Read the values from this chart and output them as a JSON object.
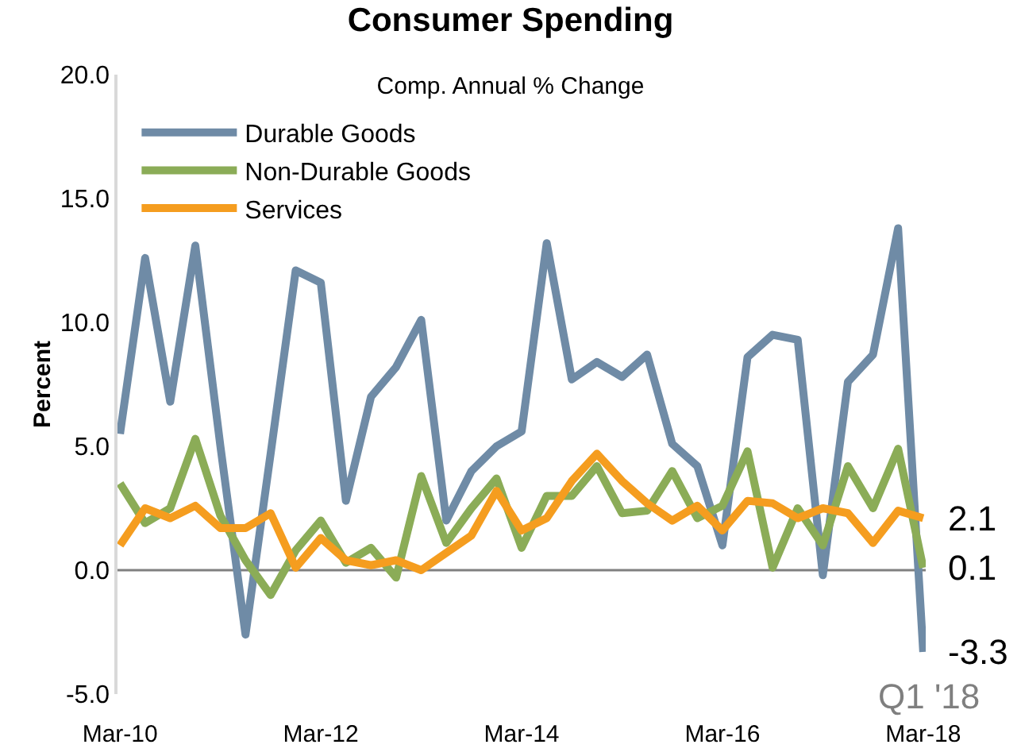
{
  "chart_data": {
    "type": "line",
    "title": "Consumer Spending",
    "subtitle": "Comp. Annual % Change",
    "ylabel": "Percent",
    "categories": [
      "Mar-10",
      null,
      null,
      null,
      null,
      null,
      null,
      null,
      "Mar-12",
      null,
      null,
      null,
      null,
      null,
      null,
      null,
      "Mar-14",
      null,
      null,
      null,
      null,
      null,
      null,
      null,
      "Mar-16",
      null,
      null,
      null,
      null,
      null,
      null,
      null,
      "Mar-18"
    ],
    "series": [
      {
        "name": "Durable Goods",
        "color": "#6f8ba6",
        "values": [
          5.5,
          12.6,
          6.8,
          13.1,
          5.0,
          -2.6,
          4.7,
          12.1,
          11.6,
          2.8,
          7.0,
          8.2,
          10.1,
          2.0,
          4.0,
          5.0,
          5.6,
          13.2,
          7.7,
          8.4,
          7.8,
          8.7,
          5.1,
          4.2,
          1.0,
          8.6,
          9.5,
          9.3,
          -0.2,
          7.6,
          8.7,
          13.8,
          -3.3
        ],
        "value_labels": [
          null,
          null,
          null,
          null,
          null,
          null,
          null,
          null,
          null,
          null,
          null,
          null,
          null,
          null,
          null,
          null,
          null,
          null,
          null,
          null,
          null,
          null,
          null,
          null,
          null,
          null,
          null,
          null,
          null,
          null,
          null,
          null,
          "-3.3"
        ]
      },
      {
        "name": "Non-Durable Goods",
        "color": "#8bac57",
        "values": [
          3.5,
          1.9,
          2.5,
          5.3,
          2.2,
          0.4,
          -1.0,
          0.8,
          2.0,
          0.3,
          0.9,
          -0.3,
          3.8,
          1.1,
          2.5,
          3.7,
          0.9,
          3.0,
          3.0,
          4.2,
          2.3,
          2.4,
          4.0,
          2.1,
          2.6,
          4.8,
          0.1,
          2.5,
          1.0,
          4.2,
          2.5,
          4.9,
          0.1
        ],
        "value_labels": [
          null,
          null,
          null,
          null,
          null,
          null,
          null,
          null,
          null,
          null,
          null,
          null,
          null,
          null,
          null,
          null,
          null,
          null,
          null,
          null,
          null,
          null,
          null,
          null,
          null,
          null,
          null,
          null,
          null,
          null,
          null,
          null,
          "0.1"
        ]
      },
      {
        "name": "Services",
        "color": "#f59d1f",
        "values": [
          1.0,
          2.5,
          2.1,
          2.6,
          1.7,
          1.7,
          2.3,
          0.1,
          1.3,
          0.4,
          0.2,
          0.4,
          0.0,
          0.7,
          1.4,
          3.2,
          1.6,
          2.1,
          3.6,
          4.7,
          3.6,
          2.7,
          2.0,
          2.6,
          1.6,
          2.8,
          2.7,
          2.1,
          2.5,
          2.3,
          1.1,
          2.4,
          2.1
        ],
        "value_labels": [
          null,
          null,
          null,
          null,
          null,
          null,
          null,
          null,
          null,
          null,
          null,
          null,
          null,
          null,
          null,
          null,
          null,
          null,
          null,
          null,
          null,
          null,
          null,
          null,
          null,
          null,
          null,
          null,
          null,
          null,
          null,
          null,
          "2.1"
        ]
      }
    ],
    "ylim": [
      -5,
      20
    ],
    "yticks": [
      {
        "value": -5,
        "label": "-5.0"
      },
      {
        "value": 0,
        "label": "0.0"
      },
      {
        "value": 5,
        "label": "5.0"
      },
      {
        "value": 10,
        "label": "10.0"
      },
      {
        "value": 15,
        "label": "15.0"
      },
      {
        "value": 20,
        "label": "20.0"
      }
    ],
    "grid": false,
    "legend": "top left",
    "marker": "none",
    "line_style": "solid",
    "ref_lines": [
      {
        "axis": "y",
        "value": 0,
        "color": "#808080"
      }
    ],
    "annotations": [
      "Q1 '18"
    ]
  }
}
